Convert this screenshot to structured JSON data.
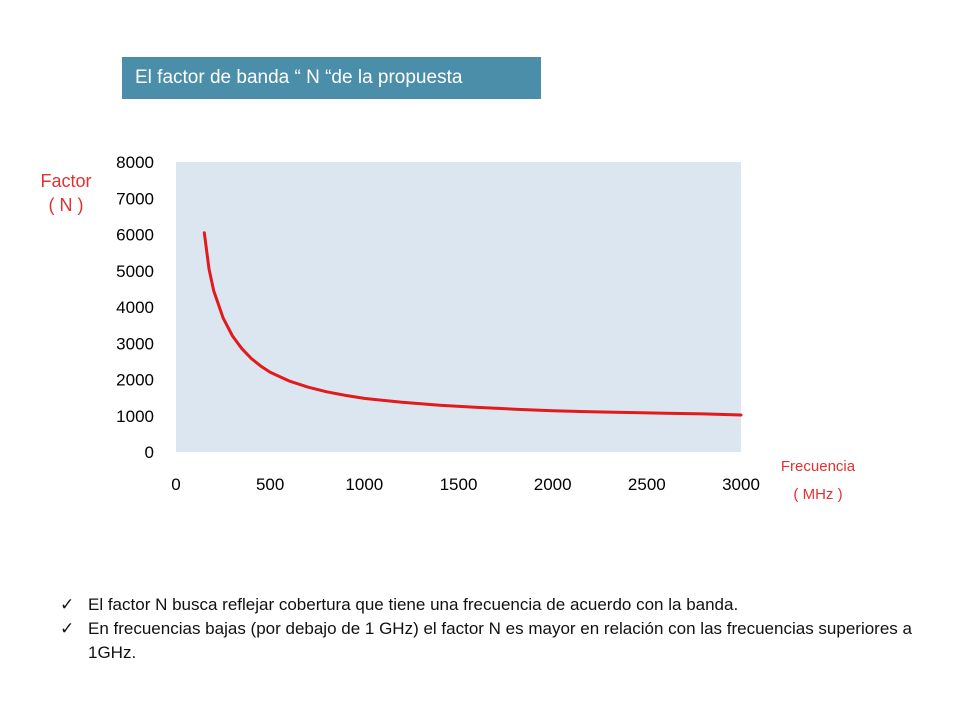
{
  "title": "El factor de banda “ N “de la propuesta",
  "y_axis_label": {
    "line1": "Factor",
    "line2": "( N )"
  },
  "x_axis_label": {
    "line1": "Frecuencia",
    "line2": "( MHz )"
  },
  "colors": {
    "title_bg": "#4a8eaa",
    "plot_bg": "#dce6f1",
    "line": "#e31a1c",
    "label_red": "#e53030"
  },
  "chart_data": {
    "type": "line",
    "xlim": [
      0,
      3000
    ],
    "ylim": [
      0,
      8000
    ],
    "x_ticks": [
      0,
      500,
      1000,
      1500,
      2000,
      2500,
      3000
    ],
    "y_ticks": [
      0,
      1000,
      2000,
      3000,
      4000,
      5000,
      6000,
      7000,
      8000
    ],
    "grid": false,
    "series": [
      {
        "x": [
          150,
          175,
          200,
          250,
          300,
          350,
          400,
          450,
          500,
          600,
          700,
          800,
          900,
          1000,
          1200,
          1400,
          1600,
          1800,
          2000,
          2200,
          2400,
          2600,
          2800,
          3000
        ],
        "y": [
          6050,
          5050,
          4450,
          3700,
          3200,
          2850,
          2580,
          2370,
          2200,
          1960,
          1790,
          1660,
          1560,
          1480,
          1370,
          1290,
          1230,
          1180,
          1140,
          1110,
          1090,
          1070,
          1050,
          1020
        ]
      }
    ]
  },
  "notes": [
    {
      "check": "✓",
      "text": "El factor N busca reflejar cobertura que tiene una  frecuencia de acuerdo con la banda."
    },
    {
      "check": "✓",
      "text": "En frecuencias bajas (por debajo de 1 GHz) el factor N es mayor en relación  con las frecuencias superiores a 1GHz."
    }
  ]
}
